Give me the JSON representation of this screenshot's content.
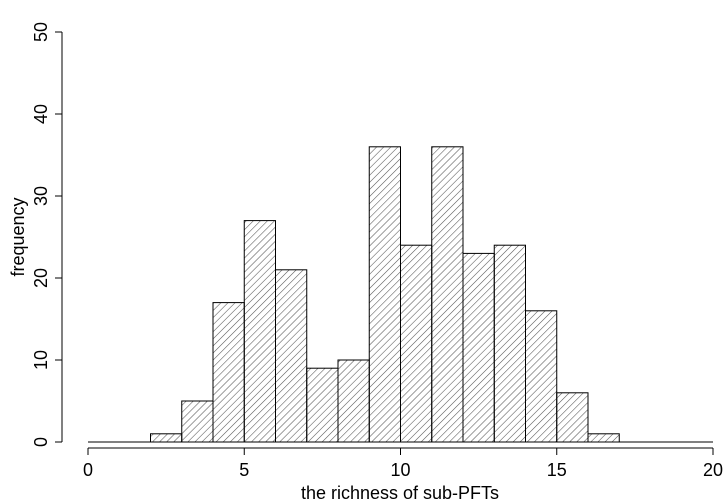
{
  "chart_data": {
    "type": "bar",
    "subtype": "histogram",
    "xlabel": "the richness of sub-PFTs",
    "ylabel": "frequency",
    "xlim": [
      0,
      20
    ],
    "ylim": [
      0,
      50
    ],
    "xticks": [
      "0",
      "5",
      "10",
      "15",
      "20"
    ],
    "yticks": [
      "0",
      "10",
      "20",
      "30",
      "40",
      "50"
    ],
    "bin_edges": [
      2,
      3,
      4,
      5,
      6,
      7,
      8,
      9,
      10,
      11,
      12,
      13,
      14,
      15,
      16,
      17
    ],
    "values": [
      1,
      5,
      17,
      27,
      21,
      9,
      10,
      36,
      24,
      36,
      23,
      24,
      16,
      6,
      1
    ],
    "fill": "diagonal hatch",
    "grid": false,
    "bar_edge_color": "#000000",
    "hatch_color": "#555555"
  }
}
